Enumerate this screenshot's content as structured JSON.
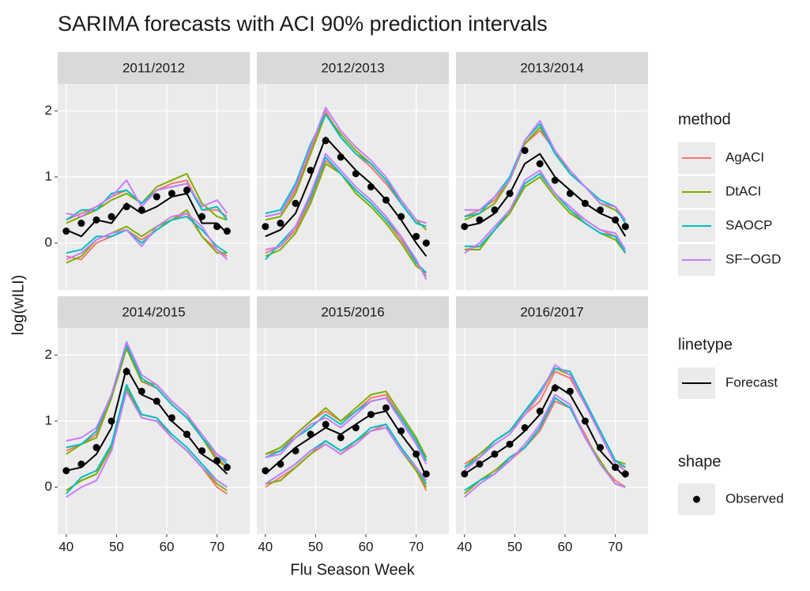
{
  "chart_data": {
    "type": "line",
    "title": "SARIMA forecasts with ACI 90% prediction intervals",
    "xlabel": "Flu Season Week",
    "ylabel": "log(wILI)",
    "xlim": [
      38.3,
      76.5
    ],
    "ylim": [
      -0.71,
      2.41
    ],
    "xticks": [
      40,
      50,
      60,
      70
    ],
    "yticks": [
      0,
      1,
      2
    ],
    "grid": true,
    "x": [
      40,
      43,
      46,
      49,
      52,
      55,
      58,
      61,
      64,
      67,
      70,
      72
    ],
    "methods": {
      "title": "method",
      "series": [
        {
          "name": "AgACI",
          "color": "#F8766D"
        },
        {
          "name": "DtACI",
          "color": "#7CAE00"
        },
        {
          "name": "SAOCP",
          "color": "#00BFC4"
        },
        {
          "name": "SF−OGD",
          "color": "#C77CFF"
        }
      ]
    },
    "linetype": {
      "title": "linetype",
      "name": "Forecast",
      "color": "#000000"
    },
    "shape": {
      "title": "shape",
      "name": "Observed",
      "color": "#000000"
    },
    "panels": [
      {
        "title": "2011/2012",
        "observed": [
          0.18,
          0.3,
          0.35,
          0.4,
          0.55,
          0.5,
          0.7,
          0.75,
          0.8,
          0.4,
          0.25,
          0.18
        ],
        "forecast": [
          0.2,
          0.1,
          0.35,
          0.3,
          0.6,
          0.45,
          0.55,
          0.7,
          0.75,
          0.3,
          0.3,
          0.15
        ],
        "intervals": [
          {
            "upper": [
              0.35,
              0.45,
              0.55,
              0.7,
              0.8,
              0.6,
              0.8,
              0.9,
              0.95,
              0.5,
              0.5,
              0.4
            ],
            "lower": [
              -0.2,
              -0.25,
              0.0,
              0.1,
              0.2,
              0.05,
              0.2,
              0.35,
              0.45,
              0.1,
              -0.1,
              -0.2
            ]
          },
          {
            "upper": [
              0.3,
              0.4,
              0.5,
              0.65,
              0.75,
              0.6,
              0.85,
              0.95,
              1.05,
              0.6,
              0.4,
              0.35
            ],
            "lower": [
              -0.3,
              -0.2,
              0.05,
              0.15,
              0.25,
              0.1,
              0.25,
              0.35,
              0.5,
              0.1,
              -0.15,
              -0.15
            ]
          },
          {
            "upper": [
              0.35,
              0.5,
              0.5,
              0.75,
              0.8,
              0.6,
              0.8,
              0.85,
              0.9,
              0.5,
              0.55,
              0.35
            ],
            "lower": [
              -0.15,
              -0.1,
              0.1,
              0.1,
              0.2,
              0.0,
              0.2,
              0.35,
              0.4,
              0.2,
              -0.05,
              -0.15
            ]
          },
          {
            "upper": [
              0.45,
              0.4,
              0.55,
              0.7,
              0.95,
              0.55,
              0.8,
              0.85,
              0.9,
              0.55,
              0.65,
              0.45
            ],
            "lower": [
              -0.25,
              -0.15,
              0.05,
              0.15,
              0.2,
              -0.05,
              0.25,
              0.4,
              0.45,
              0.25,
              -0.1,
              -0.25
            ]
          }
        ]
      },
      {
        "title": "2012/2013",
        "observed": [
          0.25,
          0.3,
          0.6,
          1.1,
          1.55,
          1.3,
          1.05,
          0.85,
          0.65,
          0.4,
          0.1,
          0.0
        ],
        "forecast": [
          0.1,
          0.2,
          0.45,
          1.0,
          1.6,
          1.35,
          1.1,
          0.9,
          0.65,
          0.35,
          0.0,
          -0.2
        ],
        "intervals": [
          {
            "upper": [
              0.4,
              0.45,
              0.8,
              1.4,
              2.0,
              1.6,
              1.35,
              1.15,
              0.9,
              0.6,
              0.3,
              0.25
            ],
            "lower": [
              -0.15,
              -0.05,
              0.2,
              0.65,
              1.25,
              1.05,
              0.8,
              0.6,
              0.35,
              0.05,
              -0.3,
              -0.5
            ]
          },
          {
            "upper": [
              0.35,
              0.4,
              0.75,
              1.35,
              1.95,
              1.65,
              1.4,
              1.2,
              0.95,
              0.65,
              0.35,
              0.2
            ],
            "lower": [
              -0.2,
              -0.1,
              0.15,
              0.6,
              1.2,
              1.05,
              0.75,
              0.55,
              0.3,
              0.0,
              -0.35,
              -0.45
            ]
          },
          {
            "upper": [
              0.45,
              0.5,
              0.9,
              1.5,
              1.95,
              1.6,
              1.35,
              1.2,
              0.95,
              0.6,
              0.3,
              0.25
            ],
            "lower": [
              -0.25,
              0.0,
              0.25,
              0.7,
              1.3,
              1.05,
              0.8,
              0.6,
              0.35,
              0.1,
              -0.3,
              -0.45
            ]
          },
          {
            "upper": [
              0.4,
              0.45,
              0.85,
              1.45,
              2.05,
              1.7,
              1.45,
              1.25,
              1.0,
              0.65,
              0.35,
              0.3
            ],
            "lower": [
              -0.1,
              -0.05,
              0.25,
              0.75,
              1.35,
              1.1,
              0.85,
              0.65,
              0.4,
              0.1,
              -0.25,
              -0.55
            ]
          }
        ]
      },
      {
        "title": "2013/2014",
        "observed": [
          0.25,
          0.35,
          0.5,
          0.75,
          1.4,
          1.2,
          0.95,
          0.75,
          0.6,
          0.5,
          0.35,
          0.25
        ],
        "forecast": [
          0.25,
          0.3,
          0.45,
          0.75,
          1.2,
          1.35,
          1.0,
          0.8,
          0.6,
          0.45,
          0.35,
          0.1
        ],
        "intervals": [
          {
            "upper": [
              0.4,
              0.5,
              0.65,
              0.95,
              1.5,
              1.7,
              1.4,
              1.05,
              0.85,
              0.6,
              0.55,
              0.35
            ],
            "lower": [
              -0.1,
              -0.05,
              0.2,
              0.45,
              0.9,
              1.05,
              0.75,
              0.5,
              0.35,
              0.2,
              0.1,
              -0.15
            ]
          },
          {
            "upper": [
              0.35,
              0.45,
              0.6,
              0.95,
              1.5,
              1.75,
              1.4,
              1.05,
              0.85,
              0.6,
              0.5,
              0.35
            ],
            "lower": [
              -0.1,
              -0.1,
              0.2,
              0.45,
              0.85,
              1.0,
              0.7,
              0.45,
              0.3,
              0.15,
              0.05,
              -0.15
            ]
          },
          {
            "upper": [
              0.4,
              0.45,
              0.7,
              1.0,
              1.55,
              1.8,
              1.35,
              1.05,
              0.85,
              0.65,
              0.55,
              0.3
            ],
            "lower": [
              -0.05,
              -0.05,
              0.2,
              0.5,
              0.9,
              1.05,
              0.75,
              0.5,
              0.3,
              0.15,
              0.1,
              -0.15
            ]
          },
          {
            "upper": [
              0.5,
              0.5,
              0.7,
              0.95,
              1.55,
              1.85,
              1.4,
              1.1,
              0.85,
              0.6,
              0.55,
              0.35
            ],
            "lower": [
              -0.15,
              0.0,
              0.25,
              0.5,
              0.95,
              1.1,
              0.75,
              0.55,
              0.35,
              0.2,
              0.15,
              -0.1
            ]
          }
        ]
      },
      {
        "title": "2014/2015",
        "observed": [
          0.25,
          0.35,
          0.6,
          1.0,
          1.75,
          1.45,
          1.3,
          1.05,
          0.8,
          0.55,
          0.4,
          0.3
        ],
        "forecast": [
          0.25,
          0.3,
          0.5,
          0.9,
          1.8,
          1.4,
          1.3,
          1.0,
          0.8,
          0.5,
          0.35,
          0.2
        ],
        "intervals": [
          {
            "upper": [
              0.55,
              0.65,
              0.8,
              1.4,
              2.1,
              1.6,
              1.5,
              1.25,
              1.05,
              0.75,
              0.45,
              0.3
            ],
            "lower": [
              -0.05,
              0.1,
              0.2,
              0.6,
              1.5,
              1.1,
              1.05,
              0.75,
              0.55,
              0.3,
              0.0,
              -0.1
            ]
          },
          {
            "upper": [
              0.5,
              0.65,
              0.75,
              1.35,
              2.1,
              1.6,
              1.55,
              1.3,
              1.1,
              0.75,
              0.4,
              0.3
            ],
            "lower": [
              -0.05,
              0.1,
              0.2,
              0.6,
              1.5,
              1.05,
              1.0,
              0.75,
              0.55,
              0.3,
              0.05,
              -0.05
            ]
          },
          {
            "upper": [
              0.6,
              0.65,
              0.85,
              1.4,
              2.15,
              1.65,
              1.5,
              1.25,
              1.05,
              0.75,
              0.5,
              0.35
            ],
            "lower": [
              -0.1,
              0.15,
              0.25,
              0.65,
              1.55,
              1.1,
              1.05,
              0.8,
              0.6,
              0.35,
              0.1,
              0.0
            ]
          },
          {
            "upper": [
              0.7,
              0.75,
              0.9,
              1.4,
              2.2,
              1.7,
              1.55,
              1.3,
              1.1,
              0.8,
              0.5,
              0.4
            ],
            "lower": [
              -0.15,
              0.0,
              0.1,
              0.55,
              1.45,
              1.05,
              1.0,
              0.75,
              0.55,
              0.3,
              0.1,
              0.0
            ]
          }
        ]
      },
      {
        "title": "2015/2016",
        "observed": [
          0.25,
          0.35,
          0.55,
          0.8,
          0.95,
          0.75,
          0.9,
          1.1,
          1.2,
          0.85,
          0.5,
          0.2
        ],
        "forecast": [
          0.2,
          0.4,
          0.6,
          0.75,
          0.9,
          0.8,
          0.95,
          1.1,
          1.15,
          0.8,
          0.5,
          0.15
        ],
        "intervals": [
          {
            "upper": [
              0.5,
              0.55,
              0.8,
              1.0,
              1.15,
              1.0,
              1.15,
              1.35,
              1.4,
              1.05,
              0.7,
              0.4
            ],
            "lower": [
              0.0,
              0.15,
              0.3,
              0.5,
              0.65,
              0.5,
              0.7,
              0.85,
              0.95,
              0.6,
              0.25,
              -0.05
            ]
          },
          {
            "upper": [
              0.5,
              0.6,
              0.8,
              1.0,
              1.2,
              1.0,
              1.2,
              1.4,
              1.45,
              1.1,
              0.75,
              0.45
            ],
            "lower": [
              0.05,
              0.1,
              0.3,
              0.5,
              0.7,
              0.55,
              0.7,
              0.85,
              0.9,
              0.55,
              0.25,
              0.0
            ]
          },
          {
            "upper": [
              0.45,
              0.55,
              0.75,
              0.9,
              1.1,
              0.95,
              1.15,
              1.3,
              1.35,
              1.05,
              0.7,
              0.4
            ],
            "lower": [
              0.05,
              0.2,
              0.35,
              0.55,
              0.7,
              0.55,
              0.7,
              0.9,
              0.95,
              0.6,
              0.3,
              0.05
            ]
          },
          {
            "upper": [
              0.45,
              0.5,
              0.75,
              0.95,
              1.05,
              0.9,
              1.1,
              1.3,
              1.35,
              1.0,
              0.65,
              0.35
            ],
            "lower": [
              0.05,
              0.2,
              0.35,
              0.55,
              0.65,
              0.5,
              0.65,
              0.85,
              0.9,
              0.55,
              0.3,
              0.1
            ]
          }
        ]
      },
      {
        "title": "2016/2017",
        "observed": [
          0.2,
          0.35,
          0.5,
          0.65,
          0.9,
          1.15,
          1.5,
          1.45,
          1.0,
          0.6,
          0.3,
          0.2
        ],
        "forecast": [
          0.2,
          0.35,
          0.5,
          0.65,
          0.85,
          1.1,
          1.55,
          1.4,
          1.0,
          0.55,
          0.3,
          0.15
        ],
        "intervals": [
          {
            "upper": [
              0.35,
              0.5,
              0.7,
              0.85,
              1.1,
              1.3,
              1.75,
              1.65,
              1.25,
              0.8,
              0.35,
              0.3
            ],
            "lower": [
              -0.1,
              0.1,
              0.25,
              0.4,
              0.6,
              0.85,
              1.3,
              1.2,
              0.8,
              0.35,
              0.1,
              0.0
            ]
          },
          {
            "upper": [
              0.3,
              0.5,
              0.7,
              0.85,
              1.15,
              1.4,
              1.8,
              1.7,
              1.3,
              0.85,
              0.4,
              0.35
            ],
            "lower": [
              -0.1,
              0.1,
              0.25,
              0.45,
              0.6,
              0.9,
              1.35,
              1.2,
              0.75,
              0.4,
              0.05,
              0.0
            ]
          },
          {
            "upper": [
              0.3,
              0.45,
              0.7,
              0.85,
              1.15,
              1.45,
              1.8,
              1.75,
              1.3,
              0.85,
              0.4,
              0.3
            ],
            "lower": [
              -0.05,
              0.1,
              0.2,
              0.45,
              0.6,
              0.9,
              1.35,
              1.2,
              0.75,
              0.35,
              0.05,
              0.0
            ]
          },
          {
            "upper": [
              0.25,
              0.45,
              0.65,
              0.8,
              1.1,
              1.4,
              1.85,
              1.7,
              1.25,
              0.8,
              0.35,
              0.25
            ],
            "lower": [
              -0.15,
              0.05,
              0.2,
              0.4,
              0.65,
              0.95,
              1.4,
              1.25,
              0.75,
              0.35,
              0.05,
              0.0
            ]
          }
        ]
      }
    ]
  }
}
